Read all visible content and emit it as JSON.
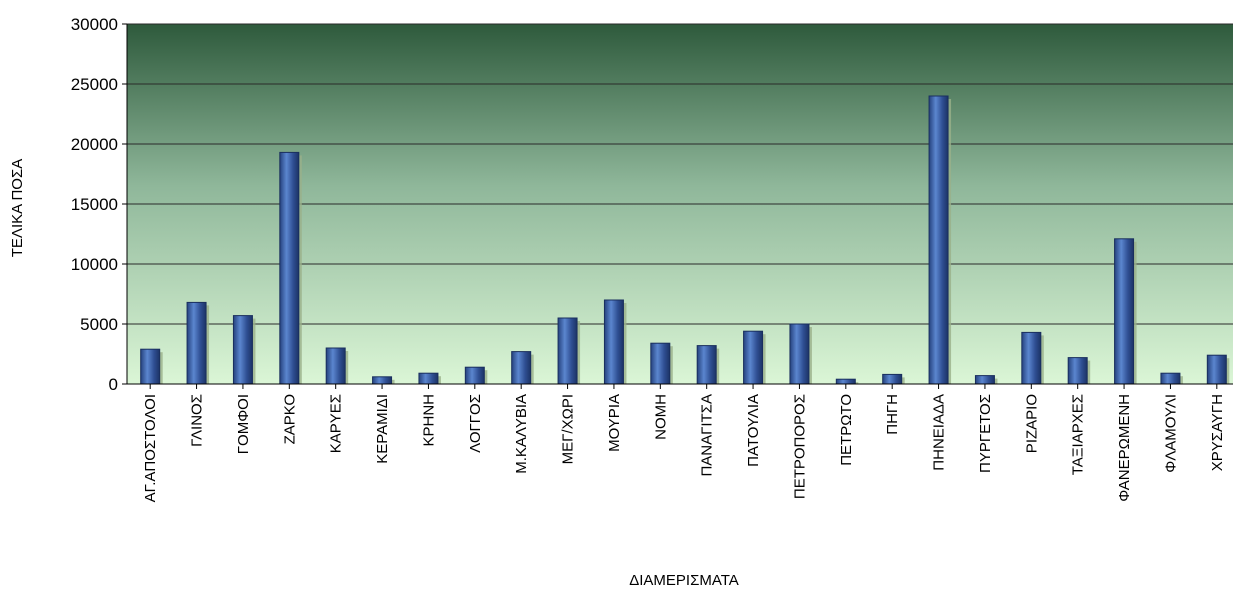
{
  "chart_data": {
    "type": "bar",
    "title": "",
    "xlabel": "ΔΙΑΜΕΡΙΣΜΑΤΑ",
    "ylabel": "ΤΕΛΙΚΑ ΠΟΣΑ",
    "ylim": [
      0,
      30000
    ],
    "yticks": [
      0,
      5000,
      10000,
      15000,
      20000,
      25000,
      30000
    ],
    "grid": true,
    "legend": "none",
    "categories": [
      "ΑΓ.ΑΠΟΣΤΟΛΟΙ",
      "ΓΛΙΝΟΣ",
      "ΓΟΜΦΟΙ",
      "ΖΑΡΚΟ",
      "ΚΑΡΥΕΣ",
      "ΚΕΡΑΜΙΔΙ",
      "ΚΡΗΝΗ",
      "ΛΟΓΓΟΣ",
      "Μ.ΚΑΛΥΒΙΑ",
      "ΜΕΓ/ΧΩΡΙ",
      "ΜΟΥΡΙΑ",
      "ΝΟΜΗ",
      "ΠΑΝΑΓΙΤΣΑ",
      "ΠΑΤΟΥΛΙΑ",
      "ΠΕΤΡΟΠΟΡΟΣ",
      "ΠΕΤΡΩΤΟ",
      "ΠΗΓΗ",
      "ΠΗΝΕΙΑΔΑ",
      "ΠΥΡΓΕΤΟΣ",
      "ΡΙΖΑΡΙΟ",
      "ΤΑΞΙΑΡΧΕΣ",
      "ΦΑΝΕΡΩΜΕΝΗ",
      "ΦΛΑΜΟΥΛΙ",
      "ΧΡΥΣΑΥΓΗ"
    ],
    "values": [
      2900,
      6800,
      5700,
      19300,
      3000,
      600,
      900,
      1400,
      2700,
      5500,
      7000,
      3400,
      3200,
      4400,
      5000,
      400,
      800,
      24000,
      700,
      4300,
      2200,
      12100,
      900,
      2400
    ],
    "colors": {
      "bar": "#2f4f93",
      "bar_highlight": "#6a93d8",
      "bar_shadow": "#9ab08a",
      "plot_top": "#2e5a3c",
      "plot_bottom": "#d8f5d4",
      "grid": "#2a2a2a"
    }
  }
}
